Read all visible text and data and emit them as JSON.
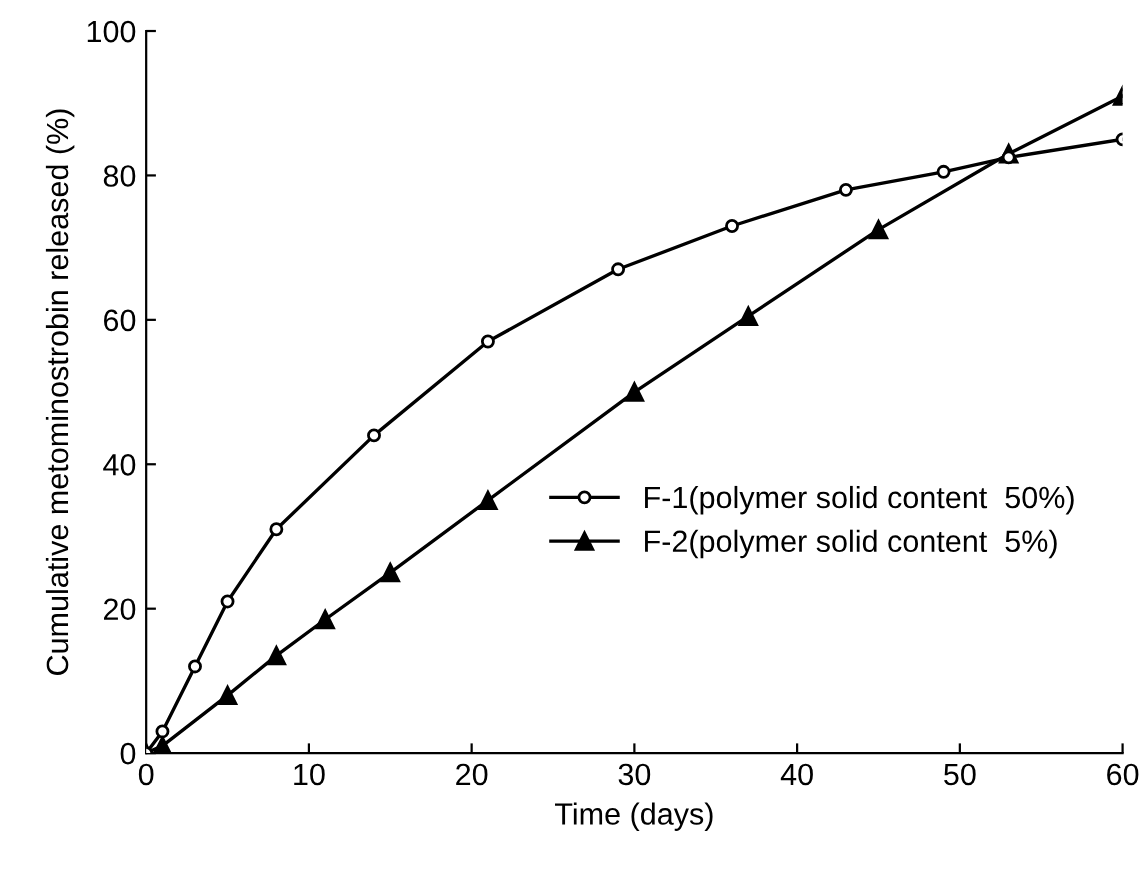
{
  "chart_data": {
    "type": "line",
    "xlabel": "Time (days)",
    "ylabel": "Cumulative metominostrobin released (%)",
    "xlim": [
      0,
      60
    ],
    "ylim": [
      0,
      100
    ],
    "xticks": [
      0,
      10,
      20,
      30,
      40,
      50,
      60
    ],
    "yticks": [
      0,
      20,
      40,
      60,
      80,
      100
    ],
    "grid": false,
    "legend": "right",
    "line_style": "solid",
    "series": [
      {
        "name": "F-1(polymer solid content  50%)",
        "color": "#000000",
        "marker": "circle",
        "x": [
          0,
          1,
          3,
          5,
          8,
          14,
          21,
          29,
          36,
          43,
          49,
          53,
          60
        ],
        "values": [
          0,
          3,
          12,
          21,
          31,
          44,
          57,
          67,
          73,
          78,
          80.5,
          82.5,
          85
        ]
      },
      {
        "name": "F-2(polymer solid content  5%)",
        "color": "#000000",
        "marker": "triangle",
        "x": [
          0,
          1,
          5,
          8,
          11,
          15,
          21,
          30,
          37,
          45,
          53,
          60
        ],
        "values": [
          0,
          1,
          8,
          13.5,
          18.5,
          25,
          35,
          50,
          60.5,
          72.5,
          83,
          91
        ]
      }
    ]
  }
}
